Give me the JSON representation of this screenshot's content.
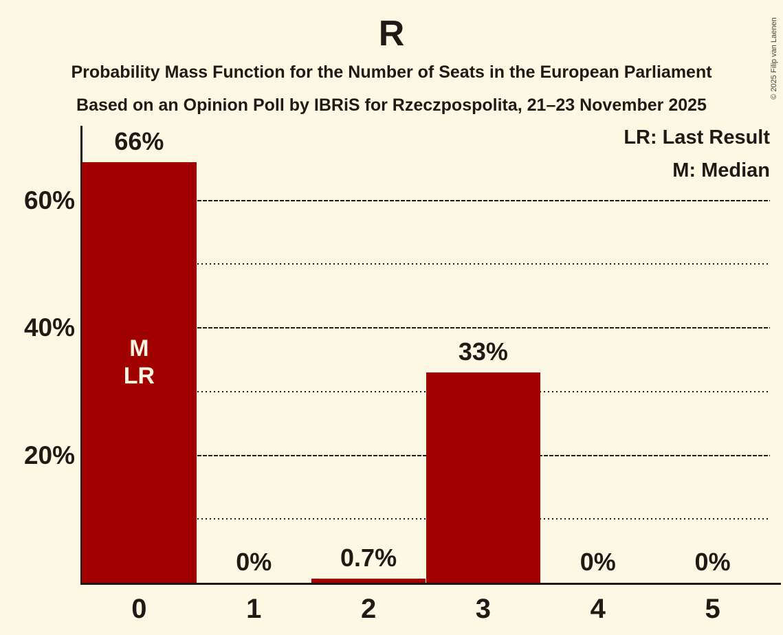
{
  "title": "R",
  "subtitle1": "Probability Mass Function for the Number of Seats in the European Parliament",
  "subtitle2": "Based on an Opinion Poll by IBRiS for Rzeczpospolita, 21–23 November 2025",
  "copyright": "© 2025 Filip van Laenen",
  "legend": {
    "last_result": "LR: Last Result",
    "median": "M: Median"
  },
  "colors": {
    "background": "#FDF8E3",
    "bar": "#A00000",
    "text": "#1E1B16",
    "bar_label": "#FAF4E1"
  },
  "chart_data": {
    "type": "bar",
    "title": "R",
    "xlabel": "",
    "ylabel": "",
    "categories": [
      "0",
      "1",
      "2",
      "3",
      "4",
      "5"
    ],
    "values": [
      66,
      0,
      0.7,
      33,
      0,
      0
    ],
    "bar_labels": [
      "66%",
      "0%",
      "0.7%",
      "33%",
      "0%",
      "0%"
    ],
    "ylim": [
      0,
      71.7
    ],
    "yticks": [
      {
        "value": 20,
        "label": "20%"
      },
      {
        "value": 40,
        "label": "40%"
      },
      {
        "value": 60,
        "label": "60%"
      }
    ],
    "minor_gridlines": [
      10,
      30,
      50
    ],
    "grid": "horizontal",
    "legend_position": "top-right",
    "annotations": {
      "bar_index": 0,
      "lines": [
        "M",
        "LR"
      ]
    }
  }
}
